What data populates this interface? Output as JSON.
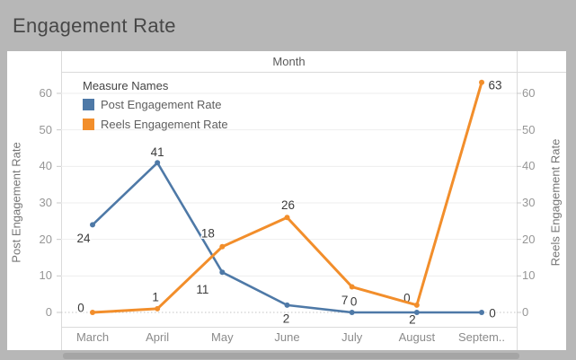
{
  "title": "Engagement Rate",
  "column_header": "Month",
  "legend": {
    "title": "Measure Names",
    "items": [
      {
        "label": "Post Engagement Rate",
        "color": "#4e79a7"
      },
      {
        "label": "Reels Engagement Rate",
        "color": "#f28e2b"
      }
    ]
  },
  "left_axis": {
    "title": "Post Engagement Rate",
    "ticks": [
      0,
      10,
      20,
      30,
      40,
      50,
      60
    ]
  },
  "right_axis": {
    "title": "Reels Engagement Rate",
    "ticks": [
      0,
      10,
      20,
      30,
      40,
      50,
      60
    ]
  },
  "x_axis": {
    "labels": [
      "March",
      "April",
      "May",
      "June",
      "July",
      "August",
      "Septem.."
    ]
  },
  "chart_data": {
    "type": "line",
    "categories": [
      "March",
      "April",
      "May",
      "June",
      "July",
      "August",
      "September"
    ],
    "series": [
      {
        "name": "Post Engagement Rate",
        "color": "#4e79a7",
        "values": [
          24,
          41,
          11,
          2,
          0,
          0,
          0
        ]
      },
      {
        "name": "Reels Engagement Rate",
        "color": "#f28e2b",
        "values": [
          0,
          1,
          18,
          26,
          7,
          2,
          63
        ]
      }
    ],
    "data_labels": true,
    "ylim": [
      0,
      65
    ],
    "grid": true,
    "zero_line": "dotted",
    "dual_axis": true,
    "legend_position": "inside-top-left"
  },
  "colors": {
    "outer_background": "#b7b7b7",
    "panel": "#ffffff",
    "gridline": "#eeeeee",
    "border": "#dadada"
  }
}
